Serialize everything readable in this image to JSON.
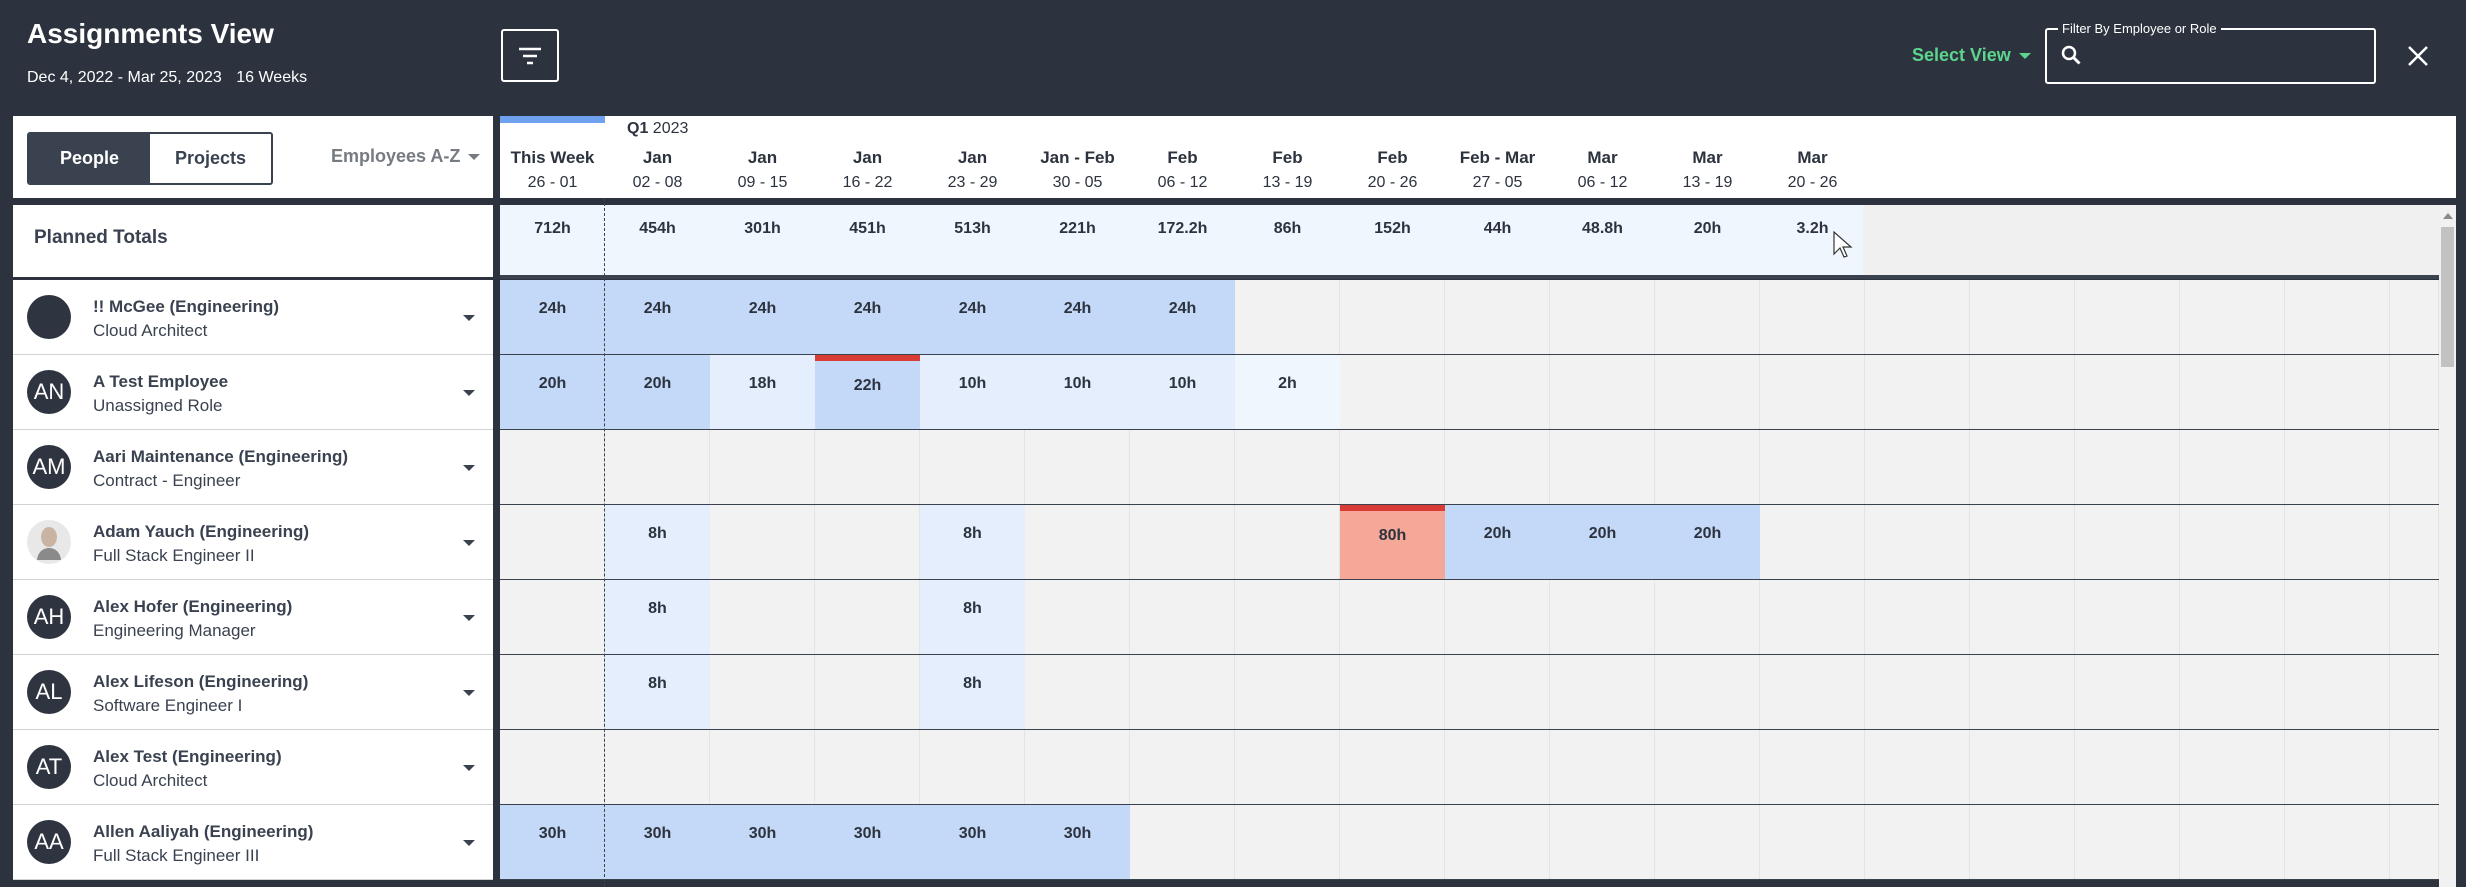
{
  "header": {
    "title": "Assignments View",
    "date_range": "Dec 4, 2022 - Mar 25, 2023",
    "weeks": "16 Weeks",
    "select_view": "Select View",
    "filter_label": "Filter By Employee or Role",
    "filter_value": "",
    "filter_placeholder": ""
  },
  "toggle": {
    "people": "People",
    "projects": "Projects"
  },
  "sort": "Employees A-Z",
  "quarter": {
    "q": "Q1",
    "year": "2023"
  },
  "weeks": [
    {
      "month": "This Week",
      "days": "26 - 01"
    },
    {
      "month": "Jan",
      "days": "02 - 08"
    },
    {
      "month": "Jan",
      "days": "09 - 15"
    },
    {
      "month": "Jan",
      "days": "16 - 22"
    },
    {
      "month": "Jan",
      "days": "23 - 29"
    },
    {
      "month": "Jan - Feb",
      "days": "30 - 05"
    },
    {
      "month": "Feb",
      "days": "06 - 12"
    },
    {
      "month": "Feb",
      "days": "13 - 19"
    },
    {
      "month": "Feb",
      "days": "20 - 26"
    },
    {
      "month": "Feb - Mar",
      "days": "27 - 05"
    },
    {
      "month": "Mar",
      "days": "06 - 12"
    },
    {
      "month": "Mar",
      "days": "13 - 19"
    },
    {
      "month": "Mar",
      "days": "20 - 26"
    }
  ],
  "planned_totals_label": "Planned Totals",
  "planned_totals": [
    "712h",
    "454h",
    "301h",
    "451h",
    "513h",
    "221h",
    "172.2h",
    "86h",
    "152h",
    "44h",
    "48.8h",
    "20h",
    "3.2h"
  ],
  "employees": [
    {
      "name": "!! McGee (Engineering)",
      "role": "Cloud Architect",
      "initials": "",
      "cells": [
        {
          "w": 0,
          "v": "24h",
          "t": "b"
        },
        {
          "w": 1,
          "v": "24h",
          "t": "b"
        },
        {
          "w": 2,
          "v": "24h",
          "t": "b"
        },
        {
          "w": 3,
          "v": "24h",
          "t": "b"
        },
        {
          "w": 4,
          "v": "24h",
          "t": "b"
        },
        {
          "w": 5,
          "v": "24h",
          "t": "b"
        },
        {
          "w": 6,
          "v": "24h",
          "t": "b"
        }
      ]
    },
    {
      "name": "A Test Employee",
      "role": "Unassigned Role",
      "initials": "AN",
      "cells": [
        {
          "w": 0,
          "v": "20h",
          "t": "b"
        },
        {
          "w": 1,
          "v": "20h",
          "t": "b"
        },
        {
          "w": 2,
          "v": "18h",
          "t": "l"
        },
        {
          "w": 3,
          "v": "22h",
          "t": "o"
        },
        {
          "w": 4,
          "v": "10h",
          "t": "l"
        },
        {
          "w": 5,
          "v": "10h",
          "t": "l"
        },
        {
          "w": 6,
          "v": "10h",
          "t": "l"
        },
        {
          "w": 7,
          "v": "2h",
          "t": "x"
        }
      ]
    },
    {
      "name": "Aari Maintenance (Engineering)",
      "role": "Contract - Engineer",
      "initials": "AM",
      "cells": []
    },
    {
      "name": "Adam Yauch (Engineering)",
      "role": "Full Stack Engineer II",
      "initials": "photo",
      "cells": [
        {
          "w": 1,
          "v": "8h",
          "t": "l"
        },
        {
          "w": 4,
          "v": "8h",
          "t": "l"
        },
        {
          "w": 8,
          "v": "80h",
          "t": "r"
        },
        {
          "w": 9,
          "v": "20h",
          "t": "b"
        },
        {
          "w": 10,
          "v": "20h",
          "t": "b"
        },
        {
          "w": 11,
          "v": "20h",
          "t": "b"
        }
      ]
    },
    {
      "name": "Alex Hofer (Engineering)",
      "role": "Engineering Manager",
      "initials": "AH",
      "cells": [
        {
          "w": 1,
          "v": "8h",
          "t": "l"
        },
        {
          "w": 4,
          "v": "8h",
          "t": "l"
        }
      ]
    },
    {
      "name": "Alex Lifeson (Engineering)",
      "role": "Software Engineer I",
      "initials": "AL",
      "cells": [
        {
          "w": 1,
          "v": "8h",
          "t": "l"
        },
        {
          "w": 4,
          "v": "8h",
          "t": "l"
        }
      ]
    },
    {
      "name": "Alex Test (Engineering)",
      "role": "Cloud Architect",
      "initials": "AT",
      "cells": []
    },
    {
      "name": "Allen Aaliyah (Engineering)",
      "role": "Full Stack Engineer III",
      "initials": "AA",
      "cells": [
        {
          "w": 0,
          "v": "30h",
          "t": "b"
        },
        {
          "w": 1,
          "v": "30h",
          "t": "b"
        },
        {
          "w": 2,
          "v": "30h",
          "t": "b"
        },
        {
          "w": 3,
          "v": "30h",
          "t": "b"
        },
        {
          "w": 4,
          "v": "30h",
          "t": "b"
        },
        {
          "w": 5,
          "v": "30h",
          "t": "b"
        }
      ]
    }
  ],
  "colors": {
    "bar": "#c4d8f7",
    "light": "#e4eefc",
    "extra_light": "#f0f6fe",
    "over": "#f6a898",
    "over_line": "#d93b35",
    "grid": "#f2f2f2",
    "accent": "#5dd58d"
  }
}
